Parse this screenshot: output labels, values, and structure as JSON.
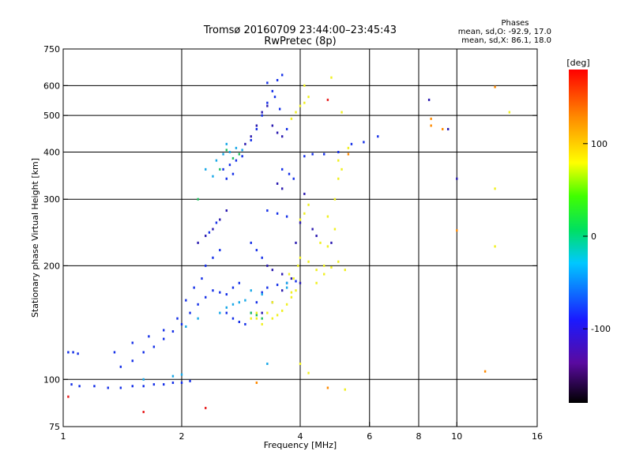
{
  "chart_data": {
    "type": "scatter",
    "title": "Tromsø 20160709 23:44:00–23:45:43",
    "subtitle": "RwPretec (8p)",
    "xlabel": "Frequency [MHz]",
    "ylabel": "Stationary phase Virtual Height [km]",
    "x_scale": "log",
    "y_scale": "log",
    "xlim": [
      1,
      16
    ],
    "ylim": [
      75,
      750
    ],
    "x_ticks": [
      1,
      2,
      4,
      6,
      8,
      10,
      16
    ],
    "y_ticks": [
      75,
      100,
      200,
      300,
      400,
      500,
      600,
      750
    ],
    "x_major_lines": [
      2,
      4,
      8
    ],
    "x_minor_lines": [
      6,
      10
    ],
    "y_major_lines": [
      100,
      200,
      300,
      400,
      500,
      600
    ],
    "info": {
      "title": "Phases",
      "line1": "mean, sd,O: -92.9, 17.0",
      "line2": "mean, sd,X:  86.1, 18.0"
    },
    "colorbar": {
      "label": "[deg]",
      "range": [
        -180,
        180
      ],
      "ticks": [
        -100,
        0,
        100
      ]
    },
    "series": [
      {
        "color": "#1530e8",
        "points": [
          [
            1.03,
            118
          ],
          [
            1.06,
            118
          ],
          [
            1.09,
            117
          ],
          [
            1.05,
            97
          ],
          [
            1.1,
            96
          ],
          [
            1.2,
            96
          ],
          [
            1.3,
            95
          ],
          [
            1.4,
            95
          ],
          [
            1.5,
            96
          ],
          [
            1.6,
            96
          ],
          [
            1.7,
            97
          ],
          [
            1.8,
            97
          ],
          [
            1.9,
            98
          ],
          [
            2.0,
            98
          ],
          [
            2.1,
            99
          ],
          [
            1.4,
            108
          ],
          [
            1.5,
            112
          ],
          [
            1.6,
            118
          ],
          [
            1.7,
            122
          ],
          [
            1.8,
            128
          ],
          [
            1.9,
            134
          ],
          [
            2.0,
            140
          ],
          [
            2.1,
            150
          ],
          [
            2.2,
            158
          ],
          [
            2.3,
            165
          ],
          [
            2.4,
            172
          ],
          [
            2.5,
            170
          ],
          [
            2.6,
            168
          ],
          [
            2.7,
            175
          ],
          [
            2.8,
            180
          ],
          [
            2.3,
            200
          ],
          [
            2.4,
            210
          ],
          [
            2.5,
            220
          ],
          [
            2.35,
            245
          ],
          [
            2.45,
            260
          ],
          [
            2.6,
            150
          ],
          [
            2.7,
            145
          ],
          [
            2.8,
            142
          ],
          [
            2.9,
            140
          ],
          [
            3.0,
            150
          ],
          [
            3.1,
            160
          ],
          [
            3.2,
            170
          ],
          [
            3.3,
            175
          ],
          [
            3.5,
            178
          ],
          [
            3.7,
            180
          ],
          [
            3.9,
            182
          ],
          [
            2.55,
            360
          ],
          [
            2.65,
            370
          ],
          [
            2.75,
            380
          ],
          [
            2.85,
            390
          ],
          [
            2.6,
            340
          ],
          [
            2.7,
            350
          ],
          [
            3.0,
            430
          ],
          [
            3.1,
            460
          ],
          [
            3.2,
            500
          ],
          [
            3.3,
            540
          ],
          [
            3.4,
            580
          ],
          [
            3.5,
            620
          ],
          [
            3.6,
            640
          ],
          [
            3.3,
            610
          ],
          [
            3.45,
            560
          ],
          [
            3.55,
            520
          ],
          [
            3.7,
            460
          ],
          [
            3.6,
            360
          ],
          [
            3.75,
            350
          ],
          [
            3.85,
            340
          ],
          [
            4.1,
            390
          ],
          [
            4.3,
            395
          ],
          [
            4.6,
            395
          ],
          [
            5.0,
            400
          ],
          [
            5.4,
            420
          ],
          [
            5.8,
            425
          ],
          [
            6.3,
            440
          ],
          [
            3.3,
            280
          ],
          [
            3.5,
            275
          ],
          [
            3.7,
            270
          ],
          [
            3.0,
            230
          ],
          [
            3.1,
            220
          ],
          [
            3.2,
            210
          ],
          [
            1.35,
            118
          ],
          [
            1.5,
            125
          ],
          [
            1.65,
            130
          ],
          [
            1.8,
            135
          ],
          [
            1.95,
            145
          ],
          [
            2.05,
            162
          ],
          [
            2.15,
            175
          ],
          [
            2.25,
            185
          ]
        ]
      },
      {
        "color": "#2a1ab0",
        "points": [
          [
            2.2,
            230
          ],
          [
            2.3,
            240
          ],
          [
            2.4,
            250
          ],
          [
            2.5,
            265
          ],
          [
            2.6,
            280
          ],
          [
            2.9,
            420
          ],
          [
            3.0,
            440
          ],
          [
            3.1,
            470
          ],
          [
            3.2,
            510
          ],
          [
            3.3,
            530
          ],
          [
            3.4,
            470
          ],
          [
            3.5,
            450
          ],
          [
            3.6,
            440
          ],
          [
            3.3,
            200
          ],
          [
            3.4,
            195
          ],
          [
            3.6,
            190
          ],
          [
            3.8,
            185
          ],
          [
            4.0,
            180
          ],
          [
            3.9,
            230
          ],
          [
            4.0,
            260
          ],
          [
            4.1,
            310
          ],
          [
            4.3,
            250
          ],
          [
            4.4,
            240
          ],
          [
            4.8,
            230
          ],
          [
            3.5,
            330
          ],
          [
            3.6,
            320
          ],
          [
            8.5,
            550
          ],
          [
            9.5,
            460
          ],
          [
            10,
            340
          ],
          [
            3.2,
            150
          ],
          [
            3.4,
            160
          ],
          [
            3.6,
            172
          ]
        ]
      },
      {
        "color": "#18a8e8",
        "points": [
          [
            2.5,
            150
          ],
          [
            2.6,
            155
          ],
          [
            2.7,
            158
          ],
          [
            2.8,
            160
          ],
          [
            2.9,
            162
          ],
          [
            2.45,
            380
          ],
          [
            2.55,
            395
          ],
          [
            2.65,
            400
          ],
          [
            2.75,
            410
          ],
          [
            2.85,
            405
          ],
          [
            2.3,
            360
          ],
          [
            2.4,
            345
          ],
          [
            2.6,
            420
          ],
          [
            3.0,
            172
          ],
          [
            3.2,
            168
          ],
          [
            1.6,
            100
          ],
          [
            1.9,
            102
          ],
          [
            2.0,
            103
          ],
          [
            3.7,
            180
          ],
          [
            3.7,
            175
          ],
          [
            2.05,
            138
          ],
          [
            2.2,
            145
          ],
          [
            3.3,
            110
          ]
        ]
      },
      {
        "color": "#20c060",
        "points": [
          [
            2.6,
            405
          ],
          [
            2.7,
            385
          ],
          [
            2.8,
            395
          ],
          [
            3.0,
            150
          ],
          [
            3.1,
            148
          ],
          [
            3.2,
            145
          ],
          [
            2.5,
            360
          ],
          [
            2.2,
            300
          ]
        ]
      },
      {
        "color": "#f0f020",
        "points": [
          [
            3.1,
            145
          ],
          [
            3.2,
            140
          ],
          [
            3.3,
            150
          ],
          [
            3.4,
            145
          ],
          [
            3.5,
            148
          ],
          [
            3.6,
            152
          ],
          [
            3.7,
            158
          ],
          [
            3.8,
            165
          ],
          [
            3.9,
            172
          ],
          [
            3.75,
            190
          ],
          [
            3.85,
            185
          ],
          [
            3.95,
            200
          ],
          [
            4.0,
            210
          ],
          [
            4.2,
            205
          ],
          [
            4.4,
            195
          ],
          [
            4.6,
            200
          ],
          [
            4.8,
            198
          ],
          [
            5.0,
            205
          ],
          [
            5.2,
            195
          ],
          [
            4.5,
            230
          ],
          [
            4.7,
            225
          ],
          [
            4.9,
            250
          ],
          [
            4.7,
            270
          ],
          [
            4.9,
            300
          ],
          [
            5.0,
            340
          ],
          [
            5.1,
            360
          ],
          [
            5.0,
            380
          ],
          [
            4.0,
            265
          ],
          [
            4.1,
            275
          ],
          [
            4.2,
            290
          ],
          [
            3.8,
            490
          ],
          [
            3.9,
            510
          ],
          [
            4.0,
            530
          ],
          [
            4.1,
            540
          ],
          [
            4.2,
            560
          ],
          [
            4.1,
            600
          ],
          [
            4.8,
            630
          ],
          [
            5.1,
            510
          ],
          [
            5.3,
            410
          ],
          [
            3.0,
            145
          ],
          [
            3.1,
            150
          ],
          [
            3.8,
            170
          ],
          [
            4.0,
            110
          ],
          [
            4.2,
            104
          ],
          [
            5.2,
            94
          ],
          [
            3.4,
            160
          ],
          [
            12.5,
            320
          ],
          [
            12.5,
            225
          ],
          [
            13.6,
            510
          ],
          [
            4.4,
            180
          ],
          [
            4.6,
            190
          ]
        ]
      },
      {
        "color": "#ff8a00",
        "points": [
          [
            5.3,
            395
          ],
          [
            8.6,
            490
          ],
          [
            8.6,
            470
          ],
          [
            9.2,
            460
          ],
          [
            4.7,
            95
          ],
          [
            3.1,
            98
          ],
          [
            11.8,
            105
          ],
          [
            12.5,
            595
          ],
          [
            10,
            248
          ]
        ]
      },
      {
        "color": "#e82020",
        "points": [
          [
            1.03,
            90
          ],
          [
            1.6,
            82
          ],
          [
            2.3,
            84
          ],
          [
            4.7,
            550
          ]
        ]
      }
    ]
  }
}
